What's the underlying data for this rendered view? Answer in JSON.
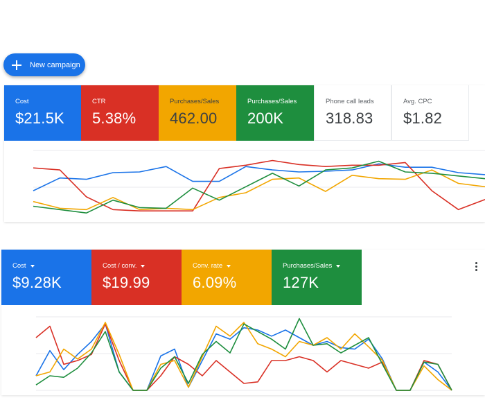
{
  "new_campaign_button": {
    "label": "New campaign",
    "icon": "plus-icon"
  },
  "colors": {
    "blue": "#1a73e8",
    "red": "#d93025",
    "yellow": "#f2a600",
    "green": "#1e8e3e"
  },
  "top_panel": {
    "cards": [
      {
        "title": "Cost",
        "value": "$21.5K",
        "color": "#1a73e8"
      },
      {
        "title": "CTR",
        "value": "5.38%",
        "color": "#d93025"
      },
      {
        "title": "Purchases/Sales",
        "value": "462.00",
        "color": "#f2a600"
      },
      {
        "title": "Purchases/Sales",
        "value": "200K",
        "color": "#1e8e3e"
      },
      {
        "title": "Phone call leads",
        "value": "318.83",
        "color": ""
      },
      {
        "title": "Avg. CPC",
        "value": "$1.82",
        "color": ""
      }
    ]
  },
  "bottom_panel": {
    "cards": [
      {
        "title": "Cost",
        "value": "$9.28K",
        "color": "#1a73e8"
      },
      {
        "title": "Cost / conv.",
        "value": "$19.99",
        "color": "#d93025"
      },
      {
        "title": "Conv. rate",
        "value": "6.09%",
        "color": "#f2a600"
      },
      {
        "title": "Purchases/Sales",
        "value": "127K",
        "color": "#1e8e3e"
      }
    ],
    "menu_icon": "more-vert-icon"
  },
  "chart_data": [
    {
      "type": "line",
      "grid": true,
      "x": [
        0,
        1,
        2,
        3,
        4,
        5,
        6,
        7,
        8,
        9,
        10,
        11,
        12,
        13,
        14,
        15,
        16,
        17
      ],
      "ylim": [
        0,
        100
      ],
      "series": [
        {
          "color": "#1a73e8",
          "values": [
            38,
            57,
            55,
            65,
            66,
            74,
            52,
            52,
            74,
            69,
            66,
            67,
            69,
            78,
            73,
            73,
            65,
            62
          ]
        },
        {
          "color": "#d93025",
          "values": [
            72,
            69,
            29,
            10,
            8,
            8,
            8,
            71,
            76,
            83,
            77,
            74,
            76,
            76,
            80,
            38,
            10,
            25
          ]
        },
        {
          "color": "#f2a600",
          "values": [
            22,
            12,
            10,
            28,
            10,
            12,
            10,
            28,
            35,
            55,
            57,
            37,
            61,
            56,
            55,
            69,
            49,
            44
          ]
        },
        {
          "color": "#1e8e3e",
          "values": [
            15,
            10,
            5,
            24,
            13,
            12,
            42,
            24,
            44,
            64,
            45,
            69,
            72,
            82,
            66,
            64,
            60,
            56
          ]
        }
      ]
    },
    {
      "type": "line",
      "grid": true,
      "x": [
        0,
        1,
        2,
        3,
        4,
        5,
        6,
        7,
        8,
        9,
        10,
        11,
        12,
        13,
        14,
        15,
        16,
        17,
        18,
        19,
        20,
        21,
        22,
        23,
        24,
        25,
        26,
        27,
        28,
        29,
        30
      ],
      "ylim": [
        0,
        100
      ],
      "series": [
        {
          "color": "#1a73e8",
          "values": [
            20,
            53,
            28,
            48,
            65,
            88,
            25,
            1,
            1,
            46,
            55,
            5,
            40,
            75,
            68,
            83,
            80,
            72,
            80,
            70,
            60,
            65,
            57,
            55,
            68,
            42,
            1,
            1,
            38,
            25,
            1
          ]
        },
        {
          "color": "#d93025",
          "values": [
            70,
            85,
            35,
            40,
            48,
            88,
            40,
            1,
            1,
            20,
            45,
            35,
            20,
            40,
            25,
            10,
            12,
            40,
            40,
            45,
            40,
            25,
            40,
            35,
            30,
            38,
            1,
            1,
            40,
            35,
            1
          ]
        },
        {
          "color": "#f2a600",
          "values": [
            20,
            25,
            55,
            42,
            55,
            90,
            48,
            1,
            1,
            35,
            40,
            5,
            45,
            85,
            72,
            90,
            62,
            55,
            45,
            65,
            60,
            70,
            55,
            75,
            58,
            40,
            1,
            1,
            33,
            15,
            1
          ]
        },
        {
          "color": "#1e8e3e",
          "values": [
            8,
            20,
            18,
            30,
            50,
            78,
            25,
            1,
            1,
            30,
            45,
            10,
            48,
            65,
            50,
            88,
            78,
            68,
            55,
            95,
            60,
            62,
            50,
            60,
            70,
            35,
            1,
            1,
            38,
            35,
            1
          ]
        }
      ]
    }
  ]
}
